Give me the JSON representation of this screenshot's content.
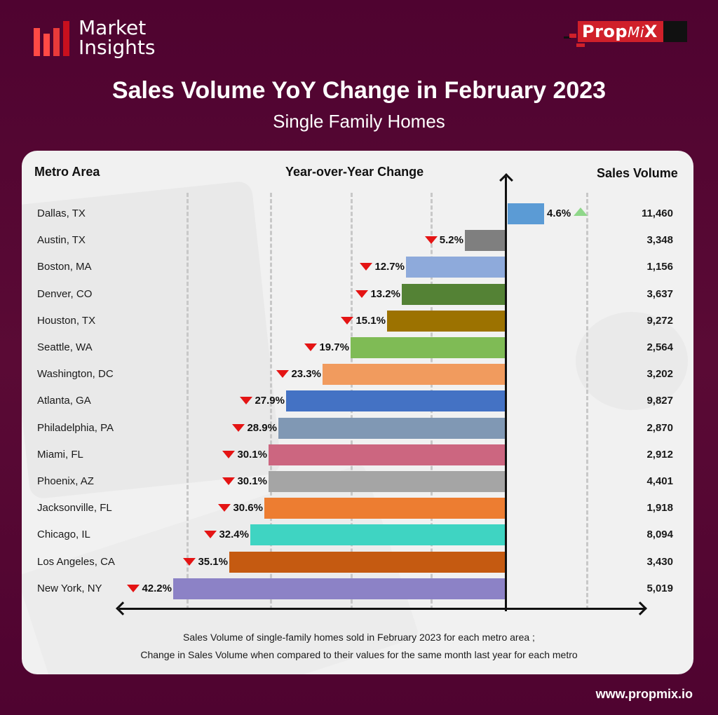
{
  "header": {
    "brand_left": {
      "line1": "Market",
      "line2": "Insights"
    },
    "brand_right": {
      "prefix": "Prop",
      "middle": "Mi",
      "suffix": "X"
    },
    "title": "Sales Volume YoY Change in February 2023",
    "subtitle": "Single Family Homes"
  },
  "columns": {
    "metro": "Metro Area",
    "yoy": "Year-over-Year Change",
    "volume": "Sales Volume"
  },
  "rows": [
    {
      "metro": "Dallas, TX",
      "yoy": 4.6,
      "label": "4.6%",
      "direction": "up",
      "volume": "11,460",
      "color": "#5b9bd5"
    },
    {
      "metro": "Austin, TX",
      "yoy": -5.2,
      "label": "5.2%",
      "direction": "down",
      "volume": "3,348",
      "color": "#7f7f7f"
    },
    {
      "metro": "Boston, MA",
      "yoy": -12.7,
      "label": "12.7%",
      "direction": "down",
      "volume": "1,156",
      "color": "#8eaadb"
    },
    {
      "metro": "Denver, CO",
      "yoy": -13.2,
      "label": "13.2%",
      "direction": "down",
      "volume": "3,637",
      "color": "#548235"
    },
    {
      "metro": "Houston, TX",
      "yoy": -15.1,
      "label": "15.1%",
      "direction": "down",
      "volume": "9,272",
      "color": "#9c7200"
    },
    {
      "metro": "Seattle, WA",
      "yoy": -19.7,
      "label": "19.7%",
      "direction": "down",
      "volume": "2,564",
      "color": "#7fbb55"
    },
    {
      "metro": "Washington, DC",
      "yoy": -23.3,
      "label": "23.3%",
      "direction": "down",
      "volume": "3,202",
      "color": "#f19b5e"
    },
    {
      "metro": "Atlanta, GA",
      "yoy": -27.9,
      "label": "27.9%",
      "direction": "down",
      "volume": "9,827",
      "color": "#4472c4"
    },
    {
      "metro": "Philadelphia, PA",
      "yoy": -28.9,
      "label": "28.9%",
      "direction": "down",
      "volume": "2,870",
      "color": "#8098b4"
    },
    {
      "metro": "Miami, FL",
      "yoy": -30.1,
      "label": "30.1%",
      "direction": "down",
      "volume": "2,912",
      "color": "#cc6680"
    },
    {
      "metro": "Phoenix, AZ",
      "yoy": -30.1,
      "label": "30.1%",
      "direction": "down",
      "volume": "4,401",
      "color": "#a5a5a5"
    },
    {
      "metro": "Jacksonville, FL",
      "yoy": -30.6,
      "label": "30.6%",
      "direction": "down",
      "volume": "1,918",
      "color": "#ed7d31"
    },
    {
      "metro": "Chicago, IL",
      "yoy": -32.4,
      "label": "32.4%",
      "direction": "down",
      "volume": "8,094",
      "color": "#3fd4c2"
    },
    {
      "metro": "Los Angeles, CA",
      "yoy": -35.1,
      "label": "35.1%",
      "direction": "down",
      "volume": "3,430",
      "color": "#c55a11"
    },
    {
      "metro": "New York, NY",
      "yoy": -42.2,
      "label": "42.2%",
      "direction": "down",
      "volume": "5,019",
      "color": "#8c82c6"
    }
  ],
  "footnote": {
    "line1": "Sales Volume of single-family homes sold in February 2023 for each metro area ;",
    "line2": "Change in Sales Volume when compared to their values for the same month last year for each metro"
  },
  "website": "www.propmix.io",
  "colors": {
    "background": "#560a31",
    "card": "#f1f1f1",
    "down_marker": "#e41414",
    "up_marker": "#8fd78a",
    "brand_red": "#d0202a"
  },
  "chart_data": {
    "type": "bar",
    "orientation": "horizontal",
    "title": "Sales Volume YoY Change in February 2023",
    "subtitle": "Single Family Homes",
    "xlabel": "Year-over-Year Change",
    "ylabel": "Metro Area",
    "categories": [
      "Dallas, TX",
      "Austin, TX",
      "Boston, MA",
      "Denver, CO",
      "Houston, TX",
      "Seattle, WA",
      "Washington, DC",
      "Atlanta, GA",
      "Philadelphia, PA",
      "Miami, FL",
      "Phoenix, AZ",
      "Jacksonville, FL",
      "Chicago, IL",
      "Los Angeles, CA",
      "New York, NY"
    ],
    "series": [
      {
        "name": "Year-over-Year Change (%)",
        "values": [
          4.6,
          -5.2,
          -12.7,
          -13.2,
          -15.1,
          -19.7,
          -23.3,
          -27.9,
          -28.9,
          -30.1,
          -30.1,
          -30.6,
          -32.4,
          -35.1,
          -42.2
        ]
      },
      {
        "name": "Sales Volume",
        "values": [
          11460,
          3348,
          1156,
          3637,
          9272,
          2564,
          3202,
          9827,
          2870,
          2912,
          4401,
          1918,
          8094,
          3430,
          5019
        ]
      }
    ],
    "grid": true,
    "legend": "none"
  }
}
